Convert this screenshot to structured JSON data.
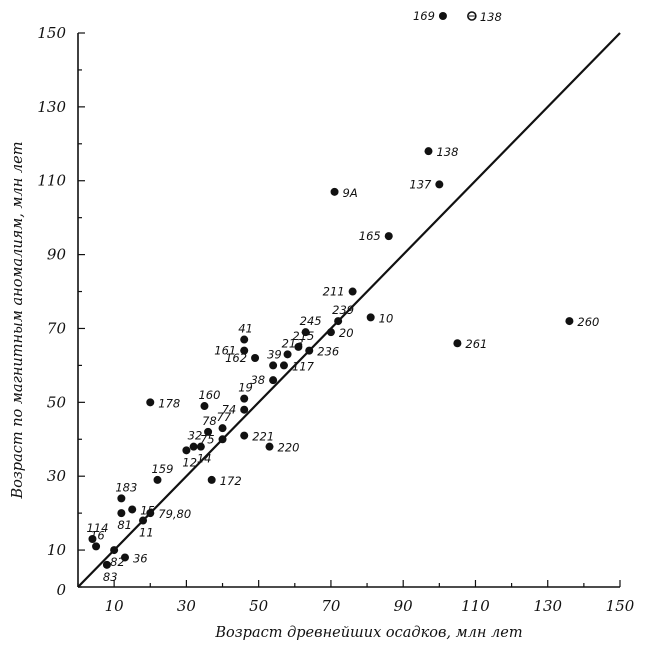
{
  "chart_data": {
    "type": "scatter",
    "xlabel": "Возраст древнейших осадков, млн лет",
    "ylabel": "Возраст по магнитным аномалиям, млн лет",
    "xlim": [
      0,
      150
    ],
    "ylim": [
      0,
      150
    ],
    "x_ticks": [
      10,
      30,
      50,
      70,
      90,
      110,
      130,
      150
    ],
    "y_ticks": [
      10,
      30,
      50,
      70,
      90,
      110,
      130,
      150
    ],
    "y_zero_label": "0",
    "grid": false,
    "reference_line": {
      "x": [
        0,
        150
      ],
      "y": [
        0,
        150
      ]
    },
    "points": [
      {
        "label": "169",
        "x": 101,
        "y": 155,
        "label_side": "left"
      },
      {
        "label": "138",
        "x": 109,
        "y": 155,
        "label_side": "right",
        "hollow": true
      },
      {
        "label": "138",
        "x": 97,
        "y": 118,
        "label_side": "right"
      },
      {
        "label": "137",
        "x": 100,
        "y": 109,
        "label_side": "left"
      },
      {
        "label": "9A",
        "x": 71,
        "y": 107,
        "label_side": "right"
      },
      {
        "label": "165",
        "x": 86,
        "y": 95,
        "label_side": "left"
      },
      {
        "label": "260",
        "x": 136,
        "y": 72,
        "label_side": "right"
      },
      {
        "label": "261",
        "x": 105,
        "y": 66,
        "label_side": "right"
      },
      {
        "label": "211",
        "x": 76,
        "y": 80,
        "label_side": "left"
      },
      {
        "label": "239",
        "x": 72,
        "y": 72,
        "label_side": "above"
      },
      {
        "label": "10",
        "x": 81,
        "y": 73,
        "label_side": "right"
      },
      {
        "label": "20",
        "x": 70,
        "y": 69,
        "label_side": "right"
      },
      {
        "label": "245",
        "x": 63,
        "y": 69,
        "label_side": "above"
      },
      {
        "label": "236",
        "x": 64,
        "y": 64,
        "label_side": "right"
      },
      {
        "label": "215",
        "x": 61,
        "y": 65,
        "label_side": "above"
      },
      {
        "label": "213",
        "x": 58,
        "y": 63,
        "label_side": "above"
      },
      {
        "label": "39",
        "x": 54,
        "y": 60,
        "label_side": "above"
      },
      {
        "label": "117",
        "x": 57,
        "y": 60,
        "label_side": "right"
      },
      {
        "label": "162",
        "x": 49,
        "y": 62,
        "label_side": "left"
      },
      {
        "label": "161",
        "x": 46,
        "y": 64,
        "label_side": "left"
      },
      {
        "label": "41",
        "x": 46,
        "y": 67,
        "label_side": "above"
      },
      {
        "label": "38",
        "x": 54,
        "y": 56,
        "label_side": "left"
      },
      {
        "label": "19",
        "x": 46,
        "y": 51,
        "label_side": "above"
      },
      {
        "label": "74",
        "x": 46,
        "y": 48,
        "label_side": "left"
      },
      {
        "label": "160",
        "x": 35,
        "y": 49,
        "label_side": "above"
      },
      {
        "label": "178",
        "x": 20,
        "y": 50,
        "label_side": "right"
      },
      {
        "label": "78",
        "x": 36,
        "y": 42,
        "label_side": "above"
      },
      {
        "label": "77",
        "x": 40,
        "y": 43,
        "label_side": "above"
      },
      {
        "label": "75",
        "x": 40,
        "y": 40,
        "label_side": "left"
      },
      {
        "label": "221",
        "x": 46,
        "y": 41,
        "label_side": "right"
      },
      {
        "label": "32",
        "x": 32,
        "y": 38,
        "label_side": "above"
      },
      {
        "label": "12",
        "x": 30,
        "y": 37,
        "label_side": "below"
      },
      {
        "label": "14",
        "x": 34,
        "y": 38,
        "label_side": "below"
      },
      {
        "label": "220",
        "x": 53,
        "y": 38,
        "label_side": "right"
      },
      {
        "label": "159",
        "x": 22,
        "y": 29,
        "label_side": "above"
      },
      {
        "label": "172",
        "x": 37,
        "y": 29,
        "label_side": "right"
      },
      {
        "label": "183",
        "x": 12,
        "y": 24,
        "label_side": "above"
      },
      {
        "label": "15",
        "x": 15,
        "y": 21,
        "label_side": "right"
      },
      {
        "label": "81",
        "x": 12,
        "y": 20,
        "label_side": "below"
      },
      {
        "label": "79,80",
        "x": 20,
        "y": 20,
        "label_side": "right"
      },
      {
        "label": "11",
        "x": 18,
        "y": 18,
        "label_side": "below"
      },
      {
        "label": "114",
        "x": 4,
        "y": 13,
        "label_side": "above"
      },
      {
        "label": "16",
        "x": 5,
        "y": 11,
        "label_side": "above"
      },
      {
        "label": "36",
        "x": 13,
        "y": 8,
        "label_side": "right"
      },
      {
        "label": "82",
        "x": 10,
        "y": 10,
        "label_side": "below"
      },
      {
        "label": "83",
        "x": 8,
        "y": 6,
        "label_side": "below"
      }
    ]
  }
}
